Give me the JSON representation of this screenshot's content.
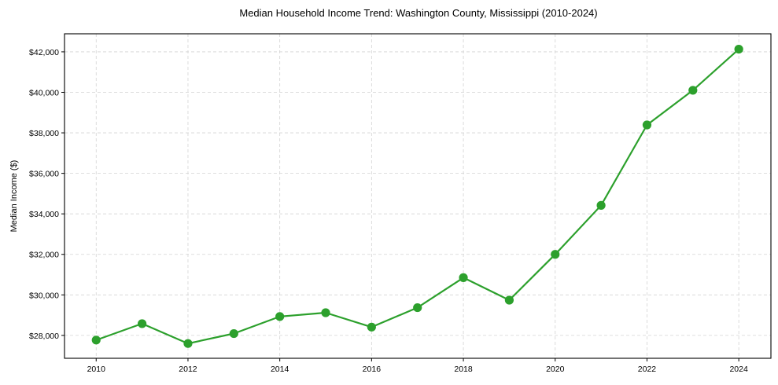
{
  "chart_data": {
    "type": "line",
    "title": "Median Household Income Trend: Washington County, Mississippi (2010-2024)",
    "xlabel": "",
    "ylabel": "Median Income ($)",
    "x": [
      2010,
      2011,
      2012,
      2013,
      2014,
      2015,
      2016,
      2017,
      2018,
      2019,
      2020,
      2021,
      2022,
      2023,
      2024
    ],
    "series": [
      {
        "name": "Median Household Income",
        "color": "#2ca02c",
        "marker": "circle",
        "values": [
          27770,
          28580,
          27600,
          28090,
          28930,
          29120,
          28410,
          29370,
          30850,
          29740,
          32000,
          34420,
          38390,
          40100,
          42130
        ]
      }
    ],
    "xlim": [
      2009.31,
      2024.7
    ],
    "ylim": [
      26870,
      42890
    ],
    "x_ticks": [
      2010,
      2012,
      2014,
      2016,
      2018,
      2020,
      2022,
      2024
    ],
    "x_tick_labels": [
      "2010",
      "2012",
      "2014",
      "2016",
      "2018",
      "2020",
      "2022",
      "2024"
    ],
    "y_ticks": [
      28000,
      30000,
      32000,
      34000,
      36000,
      38000,
      40000,
      42000
    ],
    "y_tick_labels": [
      "$28,000",
      "$30,000",
      "$32,000",
      "$34,000",
      "$36,000",
      "$38,000",
      "$40,000",
      "$42,000"
    ],
    "grid": true,
    "legend": null
  }
}
